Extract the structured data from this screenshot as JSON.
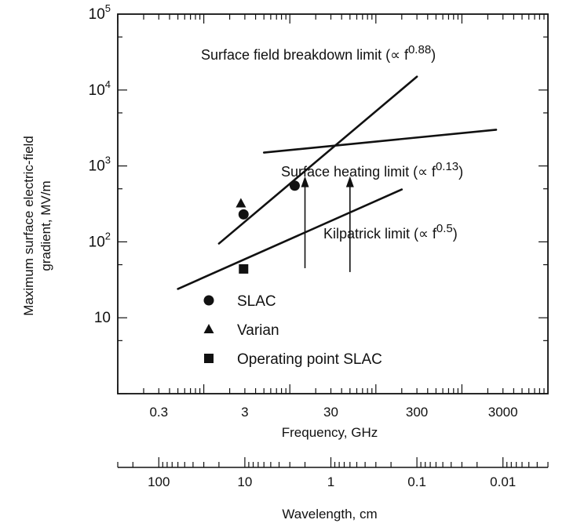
{
  "chart_data": {
    "type": "line",
    "x_scale": "log",
    "y_scale": "log",
    "xlim": [
      0.1,
      10000
    ],
    "ylim": [
      1,
      100000
    ],
    "xlabel": "Frequency, GHz",
    "ylabel_line1": "Maximum surface electric-field",
    "ylabel_line2": "gradient, MV/m",
    "x_ticks": [
      {
        "value": 0.3,
        "label": "0.3"
      },
      {
        "value": 3,
        "label": "3"
      },
      {
        "value": 30,
        "label": "30"
      },
      {
        "value": 300,
        "label": "300"
      },
      {
        "value": 3000,
        "label": "3000"
      }
    ],
    "y_ticks": [
      {
        "value": 10,
        "label": "10",
        "exp": ""
      },
      {
        "value": 100,
        "label": "10",
        "exp": "2"
      },
      {
        "value": 1000,
        "label": "10",
        "exp": "3"
      },
      {
        "value": 10000,
        "label": "10",
        "exp": "4"
      },
      {
        "value": 100000,
        "label": "10",
        "exp": "5"
      }
    ],
    "series": [
      {
        "name": "Surface field breakdown limit",
        "label_text": "Surface field breakdown limit (∝ f",
        "label_exp": "0.88",
        "label_close": ")",
        "x": [
          1.5,
          300
        ],
        "y": [
          95,
          15000
        ]
      },
      {
        "name": "Surface heating limit",
        "label_text": "Surface heating limit (∝ f",
        "label_exp": "0.13",
        "label_close": ")",
        "x": [
          5,
          2500
        ],
        "y": [
          1500,
          3000
        ]
      },
      {
        "name": "Kilpatrick limit",
        "label_text": "Kilpatrick limit (∝ f",
        "label_exp": "0.5",
        "label_close": ")",
        "x": [
          0.5,
          200
        ],
        "y": [
          24,
          490
        ]
      }
    ],
    "points": [
      {
        "series": "SLAC",
        "marker": "circle",
        "x": 2.9,
        "y": 230
      },
      {
        "series": "SLAC",
        "marker": "circle",
        "x": 11.4,
        "y": 550
      },
      {
        "series": "Varian",
        "marker": "triangle",
        "x": 2.7,
        "y": 320
      },
      {
        "series": "Operating point SLAC",
        "marker": "square",
        "x": 2.9,
        "y": 44
      }
    ],
    "arrows": [
      {
        "x": 15,
        "y_from": 45,
        "y_to": 700
      },
      {
        "x": 50,
        "y_from": 40,
        "y_to": 700
      }
    ],
    "legend": {
      "placement": "lower-left",
      "entries": [
        {
          "marker": "circle",
          "label": "SLAC"
        },
        {
          "marker": "triangle",
          "label": "Varian"
        },
        {
          "marker": "square",
          "label": "Operating point SLAC"
        }
      ]
    },
    "secondary_axis": {
      "label": "Wavelength, cm",
      "ticks": [
        {
          "value": 100,
          "label": "100"
        },
        {
          "value": 10,
          "label": "10"
        },
        {
          "value": 1,
          "label": "1"
        },
        {
          "value": 0.1,
          "label": "0.1"
        },
        {
          "value": 0.01,
          "label": "0.01"
        }
      ]
    }
  }
}
